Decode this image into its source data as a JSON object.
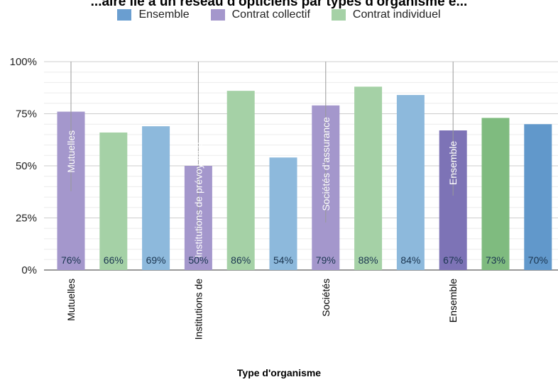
{
  "chart_data": {
    "type": "bar",
    "title": "...aire lié à un réseau d'opticiens par types d'organisme e...",
    "xlabel": "Type d'organisme",
    "ylabel": "",
    "ylim": [
      0,
      100
    ],
    "yticks": [
      "0%",
      "25%",
      "50%",
      "75%",
      "100%"
    ],
    "grid": true,
    "legend_position": "top",
    "series": [
      {
        "name": "Ensemble",
        "color": "#6a9ed0"
      },
      {
        "name": "Contrat collectif",
        "color": "#a497cc"
      },
      {
        "name": "Contrat individuel",
        "color": "#a5d1a6"
      }
    ],
    "categories": [
      "Mutuelles",
      "Institutions de",
      "Sociétés",
      "Ensemble"
    ],
    "group_labels": [
      "Mutuelles",
      "Institutions de prévoyance",
      "Sociétés d'assurance",
      "Ensemble"
    ],
    "bars": [
      {
        "group": 0,
        "series": "Contrat collectif",
        "value": 76,
        "label": "76%",
        "color": "#a497cc"
      },
      {
        "group": 0,
        "series": "Contrat individuel",
        "value": 66,
        "label": "66%",
        "color": "#a5d1a6"
      },
      {
        "group": 0,
        "series": "Ensemble",
        "value": 69,
        "label": "69%",
        "color": "#8db9dc"
      },
      {
        "group": 1,
        "series": "Contrat collectif",
        "value": 50,
        "label": "50%",
        "color": "#a497cc"
      },
      {
        "group": 1,
        "series": "Contrat individuel",
        "value": 86,
        "label": "86%",
        "color": "#a5d1a6"
      },
      {
        "group": 1,
        "series": "Ensemble",
        "value": 54,
        "label": "54%",
        "color": "#8db9dc"
      },
      {
        "group": 2,
        "series": "Contrat collectif",
        "value": 79,
        "label": "79%",
        "color": "#a497cc"
      },
      {
        "group": 2,
        "series": "Contrat individuel",
        "value": 88,
        "label": "88%",
        "color": "#a5d1a6"
      },
      {
        "group": 2,
        "series": "Ensemble",
        "value": 84,
        "label": "84%",
        "color": "#8db9dc"
      },
      {
        "group": 3,
        "series": "Contrat collectif",
        "value": 67,
        "label": "67%",
        "color": "#7d73b6"
      },
      {
        "group": 3,
        "series": "Contrat individuel",
        "value": 73,
        "label": "73%",
        "color": "#7fbb7f"
      },
      {
        "group": 3,
        "series": "Ensemble",
        "value": 70,
        "label": "70%",
        "color": "#6198cb"
      }
    ]
  }
}
